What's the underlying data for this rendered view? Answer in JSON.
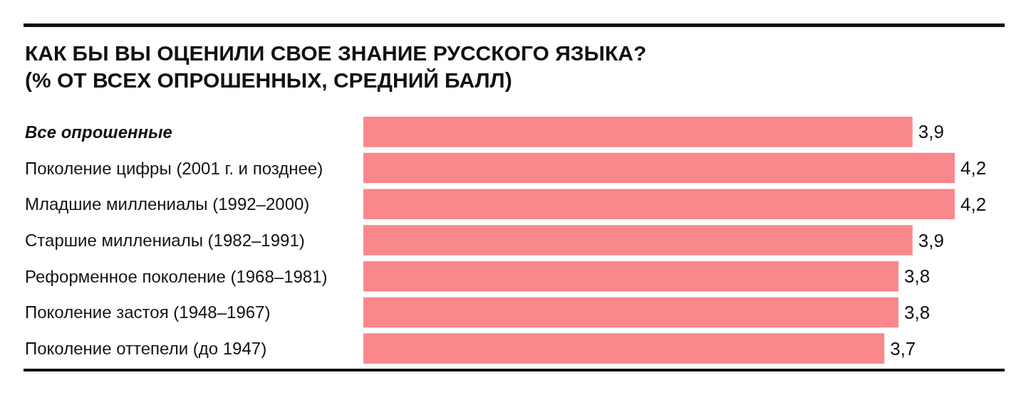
{
  "chart_data": {
    "type": "bar",
    "orientation": "horizontal",
    "title": "КАК БЫ ВЫ ОЦЕНИЛИ СВОЕ ЗНАНИЕ РУССКОГО ЯЗЫКА?",
    "subtitle": "(% ОТ ВСЕХ ОПРОШЕННЫХ, СРЕДНИЙ БАЛЛ)",
    "categories": [
      "Все опрошенные",
      "Поколение цифры (2001 г. и позднее)",
      "Младшие миллениалы (1992–2000)",
      "Старшие миллениалы (1982–1991)",
      "Реформенное поколение (1968–1981)",
      "Поколение застоя (1948–1967)",
      "Поколение оттепели (до 1947)"
    ],
    "values": [
      3.9,
      4.2,
      4.2,
      3.9,
      3.8,
      3.8,
      3.7
    ],
    "value_labels": [
      "3,9",
      "4,2",
      "4,2",
      "3,9",
      "3,8",
      "3,8",
      "3,7"
    ],
    "color": "#f9878c",
    "grid": false
  }
}
